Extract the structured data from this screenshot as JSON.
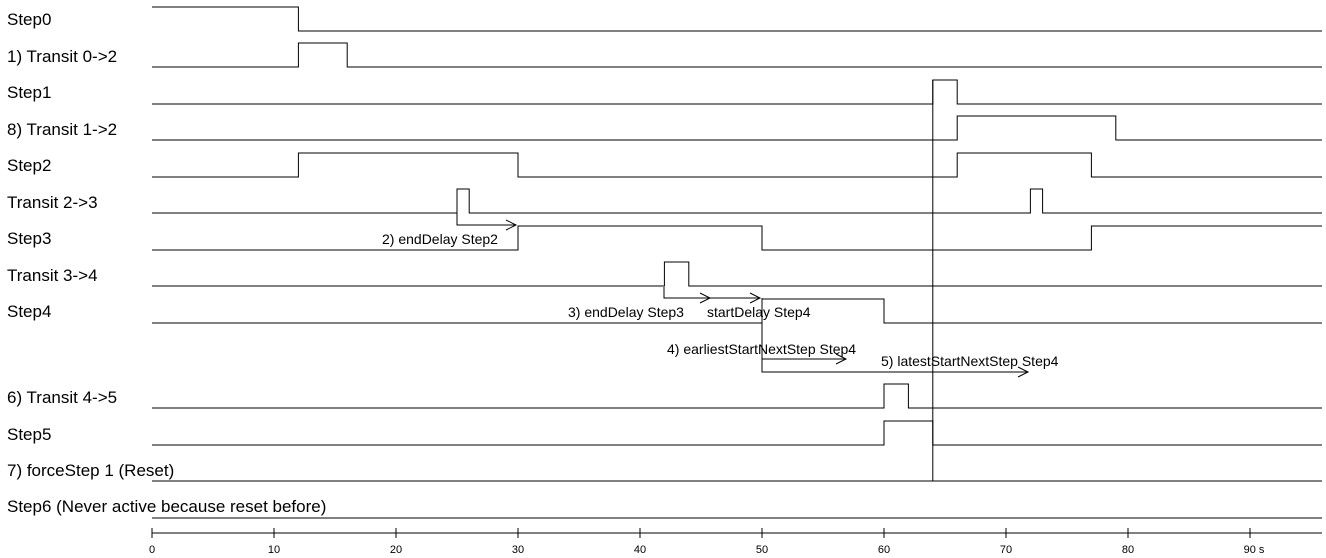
{
  "diagram": {
    "rows": [
      {
        "id": "step0",
        "label": "Step0",
        "segments": [
          [
            0,
            1
          ],
          [
            12,
            0
          ]
        ]
      },
      {
        "id": "transit-0-2",
        "label": "1) Transit 0->2",
        "segments": [
          [
            0,
            0
          ],
          [
            12,
            1
          ],
          [
            16,
            0
          ]
        ]
      },
      {
        "id": "step1",
        "label": "Step1",
        "segments": [
          [
            0,
            0
          ],
          [
            64,
            1
          ],
          [
            66,
            0
          ]
        ]
      },
      {
        "id": "transit-1-2",
        "label": "8) Transit 1->2",
        "segments": [
          [
            0,
            0
          ],
          [
            66,
            1
          ],
          [
            79,
            0
          ]
        ]
      },
      {
        "id": "step2",
        "label": "Step2",
        "segments": [
          [
            0,
            0
          ],
          [
            12,
            1
          ],
          [
            30,
            0
          ],
          [
            66,
            1
          ],
          [
            77,
            0
          ]
        ]
      },
      {
        "id": "transit-2-3",
        "label": "Transit 2->3",
        "segments": [
          [
            0,
            0
          ],
          [
            25,
            1
          ],
          [
            26,
            0
          ],
          [
            72,
            1
          ],
          [
            73,
            0
          ]
        ]
      },
      {
        "id": "step3",
        "label": "Step3",
        "segments": [
          [
            0,
            0
          ],
          [
            30,
            1
          ],
          [
            50,
            0
          ],
          [
            77,
            1
          ]
        ]
      },
      {
        "id": "transit-3-4",
        "label": "Transit 3->4",
        "segments": [
          [
            0,
            0
          ],
          [
            42,
            1
          ],
          [
            44,
            0
          ]
        ]
      },
      {
        "id": "step4",
        "label": "Step4",
        "segments": [
          [
            0,
            0
          ],
          [
            50,
            1
          ],
          [
            60,
            0
          ]
        ]
      },
      {
        "id": "transit-4-5",
        "label": "6) Transit 4->5",
        "segments": [
          [
            0,
            0
          ],
          [
            60,
            1
          ],
          [
            62,
            0
          ]
        ]
      },
      {
        "id": "step5",
        "label": "Step5",
        "segments": [
          [
            0,
            0
          ],
          [
            60,
            1
          ],
          [
            64,
            0
          ]
        ]
      },
      {
        "id": "force-step-1",
        "label": "7) forceStep 1 (Reset)",
        "segments": [
          [
            0,
            0
          ]
        ]
      },
      {
        "id": "step6",
        "label": "Step6 (Never active because reset before)",
        "segments": [
          [
            0,
            0
          ]
        ]
      }
    ],
    "annotations": [
      {
        "id": "end-delay-step2",
        "label": "2) endDelay Step2"
      },
      {
        "id": "end-delay-step3",
        "label": "3) endDelay Step3"
      },
      {
        "id": "start-delay-step4",
        "label": "startDelay Step4"
      },
      {
        "id": "earliest-start-next-step4",
        "label": "4) earliestStartNextStep Step4"
      },
      {
        "id": "latest-start-next-step4",
        "label": "5) latestStartNextStep Step4"
      }
    ],
    "axis": {
      "ticks": [
        "0",
        "10",
        "20",
        "30",
        "40",
        "50",
        "60",
        "70",
        "80",
        "90 s"
      ],
      "tick_values": [
        0,
        10,
        20,
        30,
        40,
        50,
        60,
        70,
        80,
        90
      ],
      "min": 0,
      "max": 96.8
    },
    "reset_time": 64
  }
}
